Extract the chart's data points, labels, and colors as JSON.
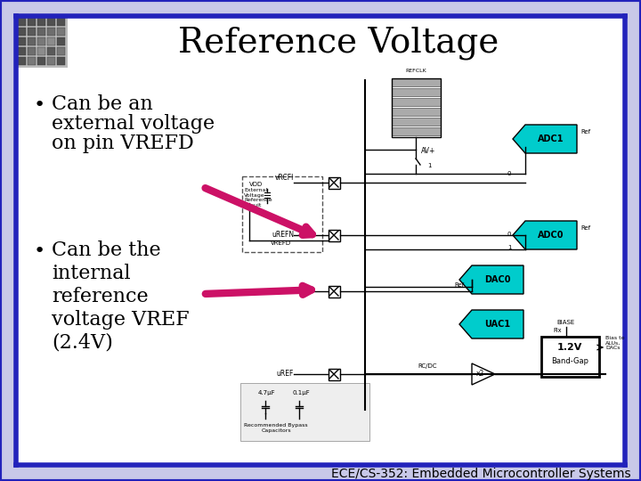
{
  "title": "Reference Voltage",
  "title_fontsize": 28,
  "title_font": "serif",
  "slide_bg": "#ffffff",
  "outer_bg": "#c8c8e8",
  "border_color": "#2222bb",
  "bullet1_lines": [
    "Can be an",
    "external voltage",
    "on pin VREFD"
  ],
  "bullet2_lines": [
    "Can be the",
    "internal",
    "reference",
    "voltage VREF",
    "(2.4V)"
  ],
  "bullet_fontsize": 16,
  "footer": "ECE/CS-352: Embedded Microcontroller Systems",
  "footer_fontsize": 10,
  "arrow_color": "#cc1166",
  "cyan_color": "#00cccc",
  "text_color": "#000000",
  "gray_color": "#999999"
}
